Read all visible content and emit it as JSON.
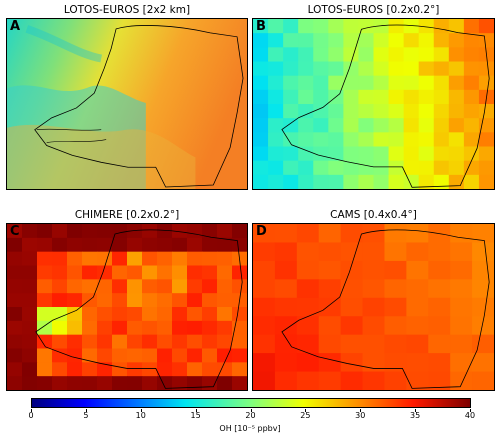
{
  "panels": [
    {
      "id": "A",
      "letter": "A",
      "title": "LOTOS-EUROS [2x2 km]"
    },
    {
      "id": "B",
      "letter": "B",
      "title": "LOTOS-EUROS [0.2x0.2°]"
    },
    {
      "id": "C",
      "letter": "C",
      "title": "CHIMERE [0.2x0.2°]"
    },
    {
      "id": "D",
      "letter": "D",
      "title": "CAMS [0.4x0.4°]"
    }
  ],
  "colorbar": {
    "label": "OH [10⁻⁵ ppbv]",
    "min": 0,
    "max": 40,
    "ticks": [
      "0",
      "5",
      "10",
      "15",
      "20",
      "25",
      "30",
      "35",
      "40"
    ],
    "colormap": "jet"
  },
  "colors": {
    "border": "#000000",
    "background": "#ffffff"
  }
}
